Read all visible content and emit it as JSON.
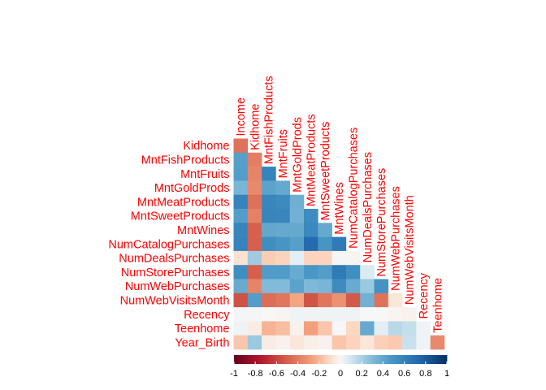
{
  "chart_data": {
    "type": "heatmap",
    "subtype": "lower-triangular correlation matrix",
    "variables": [
      "Income",
      "Kidhome",
      "MntFishProducts",
      "MntFruits",
      "MntGoldProds",
      "MntMeatProducts",
      "MntSweetProducts",
      "MntWines",
      "NumCatalogPurchases",
      "NumDealsPurchases",
      "NumStorePurchases",
      "NumWebPurchases",
      "NumWebVisitsMonth",
      "Recency",
      "Teenhome",
      "Year_Birth"
    ],
    "row_labels": [
      "Kidhome",
      "MntFishProducts",
      "MntFruits",
      "MntGoldProds",
      "MntMeatProducts",
      "MntSweetProducts",
      "MntWines",
      "NumCatalogPurchases",
      "NumDealsPurchases",
      "NumStorePurchases",
      "NumWebPurchases",
      "NumWebVisitsMonth",
      "Recency",
      "Teenhome",
      "Year_Birth"
    ],
    "column_labels": [
      "Income",
      "Kidhome",
      "MntFishProducts",
      "MntFruits",
      "MntGoldProds",
      "MntMeatProducts",
      "MntSweetProducts",
      "MntWines",
      "NumCatalogPurchases",
      "NumDealsPurchases",
      "NumStorePurchases",
      "NumWebPurchases",
      "NumWebVisitsMonth",
      "Recency",
      "Teenhome"
    ],
    "matrix": [
      [
        -0.43
      ],
      [
        0.44,
        -0.39
      ],
      [
        0.45,
        -0.37,
        0.59
      ],
      [
        0.33,
        -0.35,
        0.42,
        0.39
      ],
      [
        0.59,
        -0.44,
        0.57,
        0.55,
        0.36
      ],
      [
        0.45,
        -0.38,
        0.58,
        0.57,
        0.35,
        0.54
      ],
      [
        0.58,
        -0.5,
        0.4,
        0.39,
        0.39,
        0.56,
        0.39
      ],
      [
        0.59,
        -0.5,
        0.53,
        0.49,
        0.44,
        0.72,
        0.49,
        0.64
      ],
      [
        -0.08,
        0.22,
        -0.14,
        -0.12,
        0.05,
        -0.12,
        -0.12,
        0.01,
        -0.01
      ],
      [
        0.53,
        -0.5,
        0.46,
        0.46,
        0.38,
        0.48,
        0.45,
        0.64,
        0.52,
        0.07
      ],
      [
        0.38,
        -0.37,
        0.3,
        0.3,
        0.42,
        0.31,
        0.33,
        0.54,
        0.38,
        0.23,
        0.5
      ],
      [
        -0.55,
        0.45,
        -0.45,
        -0.42,
        -0.25,
        -0.54,
        -0.42,
        -0.32,
        -0.52,
        0.35,
        -0.43,
        -0.06
      ],
      [
        0.01,
        0.01,
        0.0,
        -0.01,
        0.02,
        0.02,
        0.02,
        0.02,
        0.02,
        0.0,
        0.0,
        -0.01,
        -0.02
      ],
      [
        0.02,
        -0.04,
        -0.21,
        -0.18,
        -0.02,
        -0.27,
        -0.16,
        0.0,
        -0.11,
        0.39,
        0.05,
        0.16,
        0.13,
        0.02
      ],
      [
        -0.16,
        0.23,
        -0.04,
        -0.02,
        -0.06,
        -0.03,
        -0.02,
        -0.16,
        -0.12,
        -0.06,
        -0.13,
        -0.15,
        0.12,
        0.02,
        -0.35
      ]
    ],
    "colorbar": {
      "range": [
        -1,
        1
      ],
      "ticks": [
        "-1",
        "-0.8",
        "-0.6",
        "-0.4",
        "-0.2",
        "0",
        "0.2",
        "0.4",
        "0.6",
        "0.8",
        "1"
      ],
      "low_color": "#67001F",
      "mid_color": "#F7F7F7",
      "high_color": "#053061"
    },
    "label_color": "#FF0000"
  }
}
